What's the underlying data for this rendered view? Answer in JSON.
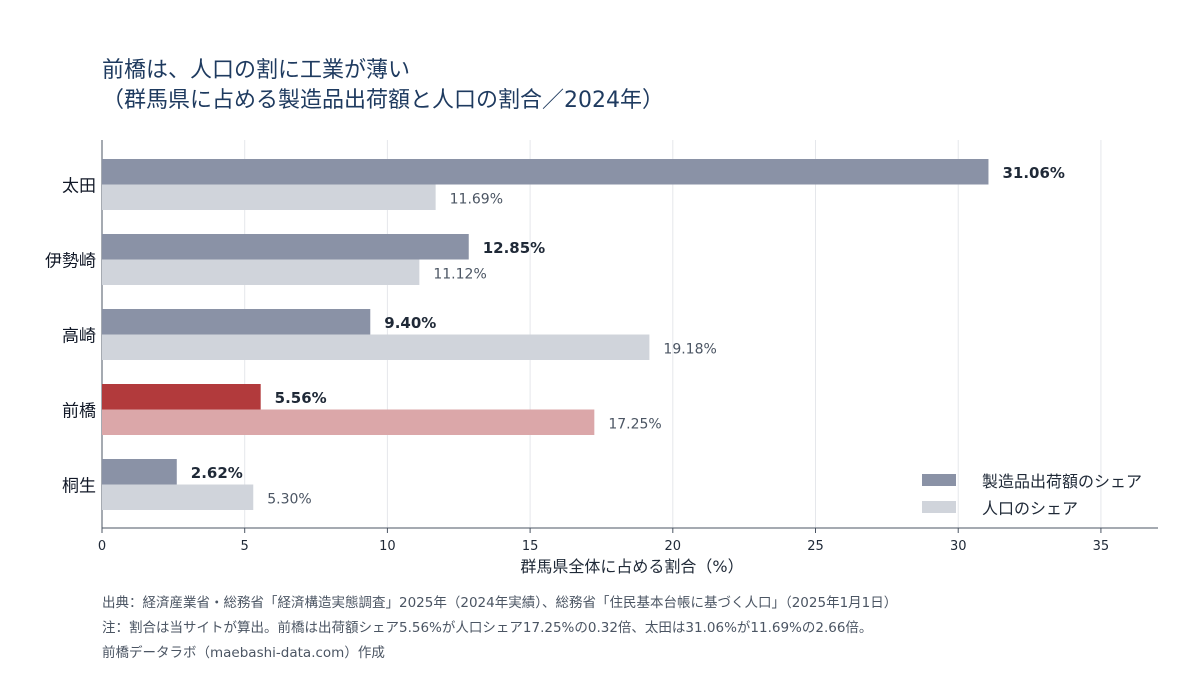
{
  "title": {
    "line1": "前橋は、人口の割に工業が薄い",
    "line2": "（群馬県に占める製造品出荷額と人口の割合／2024年）"
  },
  "colors": {
    "shipment": "#8a92a6",
    "population": "#d0d4db",
    "highlight_shipment": "#b23a3c",
    "highlight_population": "#dba7a9",
    "axis": "#4b5563",
    "grid": "#e5e7eb"
  },
  "legend": {
    "shipment_label": "製造品出荷額のシェア",
    "population_label": "人口のシェア"
  },
  "notes": {
    "source": "出典：経済産業省・総務省「経済構造実態調査」2025年（2024年実績）、総務省「住民基本台帳に基づく人口」（2025年1月1日）",
    "note": "注：割合は当サイトが算出。前橋は出荷額シェア5.56%が人口シェア17.25%の0.32倍、太田は31.06%が11.69%の2.66倍。",
    "credit": "前橋データラボ（maebashi-data.com）作成"
  },
  "chart_data": {
    "type": "bar",
    "orientation": "horizontal",
    "categories": [
      "太田",
      "伊勢崎",
      "高崎",
      "前橋",
      "桐生"
    ],
    "highlight": "前橋",
    "series": [
      {
        "name": "製造品出荷額のシェア",
        "values": [
          31.06,
          12.85,
          9.4,
          5.56,
          2.62
        ],
        "labels": [
          "31.06%",
          "12.85%",
          "9.40%",
          "5.56%",
          "2.62%"
        ]
      },
      {
        "name": "人口のシェア",
        "values": [
          11.69,
          11.12,
          19.18,
          17.25,
          5.3
        ],
        "labels": [
          "11.69%",
          "11.12%",
          "19.18%",
          "17.25%",
          "5.30%"
        ]
      }
    ],
    "xlabel": "群馬県全体に占める割合（%）",
    "xlim": [
      0,
      37
    ],
    "xticks": [
      "0",
      "5",
      "10",
      "15",
      "20",
      "25",
      "30",
      "35"
    ],
    "grid": true,
    "legend_position": "bottom-right"
  }
}
